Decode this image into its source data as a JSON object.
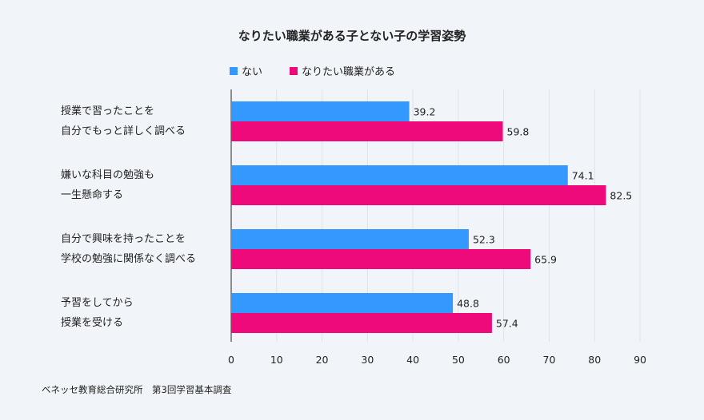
{
  "chart_data": {
    "type": "bar",
    "orientation": "horizontal",
    "title": "なりたい職業がある子とない子の学習姿勢",
    "categories": [
      [
        "授業で習ったことを",
        "自分でもっと詳しく調べる"
      ],
      [
        "嫌いな科目の勉強も",
        "一生懸命する"
      ],
      [
        "自分で興味を持ったことを",
        "学校の勉強に関係なく調べる"
      ],
      [
        "予習をしてから",
        "授業を受ける"
      ]
    ],
    "series": [
      {
        "name": "ない",
        "color": "#3399ff",
        "values": [
          39.2,
          74.1,
          52.3,
          48.8
        ]
      },
      {
        "name": "なりたい職業がある",
        "color": "#ee0a7a",
        "values": [
          59.8,
          82.5,
          65.9,
          57.4
        ]
      }
    ],
    "xlim": [
      0,
      90
    ],
    "xticks": [
      0,
      10,
      20,
      30,
      40,
      50,
      60,
      70,
      80,
      90
    ],
    "grid": true,
    "legend_position": "top"
  },
  "source": "ベネッセ教育総合研究所　第3回学習基本調査"
}
